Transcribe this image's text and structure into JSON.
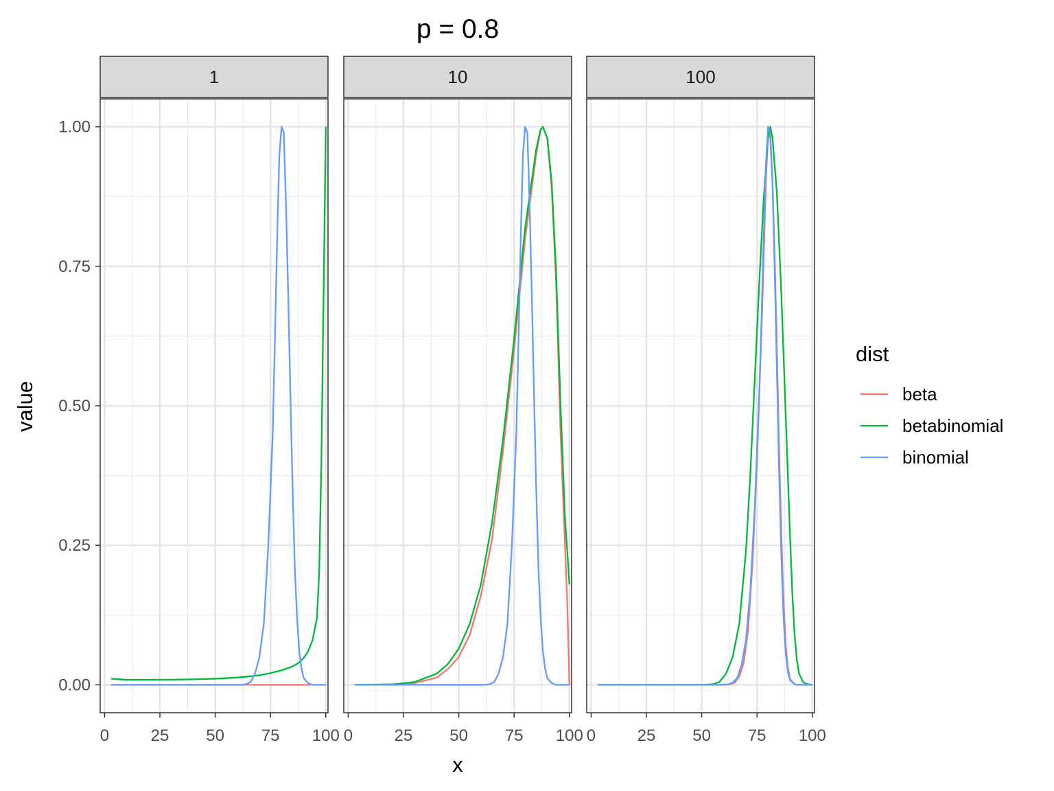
{
  "chart_data": {
    "type": "line",
    "title": "p = 0.8",
    "xlabel": "x",
    "ylabel": "value",
    "xlim": [
      -2,
      101
    ],
    "ylim": [
      -0.05,
      1.05
    ],
    "x_ticks": [
      0,
      25,
      50,
      75,
      100
    ],
    "x_tick_labels": [
      "0",
      "25",
      "50",
      "75",
      "100"
    ],
    "y_ticks": [
      0,
      0.25,
      0.5,
      0.75,
      1.0
    ],
    "y_tick_labels": [
      "0.00",
      "0.25",
      "0.50",
      "0.75",
      "1.00"
    ],
    "grid": true,
    "legend": {
      "title": "dist",
      "placement": "right",
      "entries": [
        {
          "label": "beta",
          "color": "#F8766D"
        },
        {
          "label": "betabinomial",
          "color": "#00BA38"
        },
        {
          "label": "binomial",
          "color": "#619CFF"
        }
      ]
    },
    "panels": [
      {
        "label": "1",
        "series": [
          {
            "name": "beta",
            "color": "#F8766D",
            "points": [
              [
                3,
                0
              ],
              [
                20,
                0
              ],
              [
                40,
                0
              ],
              [
                60,
                0
              ],
              [
                65,
                0
              ],
              [
                70,
                0
              ],
              [
                80,
                0
              ],
              [
                90,
                0
              ],
              [
                93,
                0
              ]
            ]
          },
          {
            "name": "betabinomial",
            "color": "#00BA38",
            "points": [
              [
                3,
                0.011
              ],
              [
                10,
                0.009
              ],
              [
                20,
                0.009
              ],
              [
                30,
                0.0092
              ],
              [
                40,
                0.0098
              ],
              [
                50,
                0.011
              ],
              [
                60,
                0.013
              ],
              [
                70,
                0.017
              ],
              [
                75,
                0.021
              ],
              [
                80,
                0.026
              ],
              [
                85,
                0.033
              ],
              [
                88,
                0.04
              ],
              [
                90,
                0.048
              ],
              [
                92,
                0.06
              ],
              [
                94,
                0.08
              ],
              [
                95,
                0.1
              ],
              [
                96,
                0.12
              ],
              [
                97,
                0.2
              ],
              [
                98,
                0.4
              ],
              [
                99,
                0.7
              ],
              [
                100,
                1.0
              ]
            ]
          },
          {
            "name": "binomial",
            "color": "#619CFF",
            "points": [
              [
                3,
                0
              ],
              [
                20,
                0
              ],
              [
                40,
                0
              ],
              [
                55,
                0
              ],
              [
                62,
                0
              ],
              [
                64,
                0.001
              ],
              [
                66,
                0.005
              ],
              [
                68,
                0.02
              ],
              [
                70,
                0.05
              ],
              [
                72,
                0.11
              ],
              [
                74,
                0.25
              ],
              [
                76,
                0.45
              ],
              [
                77,
                0.62
              ],
              [
                78,
                0.8
              ],
              [
                79,
                0.95
              ],
              [
                80,
                1.0
              ],
              [
                81,
                0.99
              ],
              [
                82,
                0.86
              ],
              [
                83,
                0.7
              ],
              [
                84,
                0.52
              ],
              [
                85,
                0.35
              ],
              [
                86,
                0.21
              ],
              [
                87,
                0.12
              ],
              [
                88,
                0.06
              ],
              [
                89,
                0.03
              ],
              [
                90,
                0.012
              ],
              [
                92,
                0.003
              ],
              [
                94,
                0.0
              ],
              [
                100,
                0.0
              ]
            ]
          }
        ]
      },
      {
        "label": "10",
        "series": [
          {
            "name": "beta",
            "color": "#F8766D",
            "points": [
              [
                3,
                0
              ],
              [
                20,
                0.0005
              ],
              [
                30,
                0.003
              ],
              [
                40,
                0.013
              ],
              [
                45,
                0.028
              ],
              [
                50,
                0.05
              ],
              [
                55,
                0.09
              ],
              [
                60,
                0.16
              ],
              [
                65,
                0.26
              ],
              [
                70,
                0.42
              ],
              [
                75,
                0.6
              ],
              [
                80,
                0.8
              ],
              [
                85,
                0.95
              ],
              [
                87,
                0.995
              ],
              [
                88,
                1.0
              ],
              [
                90,
                0.98
              ],
              [
                92,
                0.89
              ],
              [
                94,
                0.72
              ],
              [
                96,
                0.45
              ],
              [
                98,
                0.25
              ],
              [
                99,
                0.15
              ],
              [
                100,
                0.0
              ]
            ]
          },
          {
            "name": "betabinomial",
            "color": "#00BA38",
            "points": [
              [
                3,
                0
              ],
              [
                20,
                0.0008
              ],
              [
                30,
                0.005
              ],
              [
                40,
                0.02
              ],
              [
                45,
                0.037
              ],
              [
                50,
                0.065
              ],
              [
                55,
                0.11
              ],
              [
                60,
                0.18
              ],
              [
                65,
                0.29
              ],
              [
                70,
                0.44
              ],
              [
                75,
                0.62
              ],
              [
                80,
                0.82
              ],
              [
                85,
                0.96
              ],
              [
                87,
                0.995
              ],
              [
                88,
                1.0
              ],
              [
                90,
                0.98
              ],
              [
                92,
                0.9
              ],
              [
                94,
                0.74
              ],
              [
                96,
                0.5
              ],
              [
                98,
                0.3
              ],
              [
                100,
                0.18
              ]
            ]
          },
          {
            "name": "binomial",
            "color": "#619CFF",
            "points": [
              [
                3,
                0
              ],
              [
                20,
                0
              ],
              [
                40,
                0
              ],
              [
                55,
                0
              ],
              [
                62,
                0
              ],
              [
                64,
                0.001
              ],
              [
                66,
                0.005
              ],
              [
                68,
                0.02
              ],
              [
                70,
                0.05
              ],
              [
                72,
                0.11
              ],
              [
                74,
                0.25
              ],
              [
                76,
                0.45
              ],
              [
                77,
                0.62
              ],
              [
                78,
                0.8
              ],
              [
                79,
                0.95
              ],
              [
                80,
                1.0
              ],
              [
                81,
                0.99
              ],
              [
                82,
                0.86
              ],
              [
                83,
                0.7
              ],
              [
                84,
                0.52
              ],
              [
                85,
                0.35
              ],
              [
                86,
                0.21
              ],
              [
                87,
                0.12
              ],
              [
                88,
                0.06
              ],
              [
                89,
                0.03
              ],
              [
                90,
                0.012
              ],
              [
                92,
                0.003
              ],
              [
                94,
                0.0
              ],
              [
                100,
                0.0
              ]
            ]
          }
        ]
      },
      {
        "label": "100",
        "series": [
          {
            "name": "beta",
            "color": "#F8766D",
            "points": [
              [
                3,
                0
              ],
              [
                30,
                0
              ],
              [
                50,
                0
              ],
              [
                60,
                0
              ],
              [
                63,
                0.001
              ],
              [
                65,
                0.004
              ],
              [
                67,
                0.015
              ],
              [
                69,
                0.04
              ],
              [
                71,
                0.1
              ],
              [
                73,
                0.22
              ],
              [
                75,
                0.4
              ],
              [
                77,
                0.63
              ],
              [
                78,
                0.76
              ],
              [
                79,
                0.9
              ],
              [
                80,
                0.99
              ],
              [
                81,
                0.98
              ],
              [
                82,
                0.9
              ],
              [
                83,
                0.77
              ],
              [
                84,
                0.6
              ],
              [
                85,
                0.42
              ],
              [
                86,
                0.27
              ],
              [
                87,
                0.15
              ],
              [
                88,
                0.07
              ],
              [
                89,
                0.03
              ],
              [
                90,
                0.01
              ],
              [
                92,
                0.001
              ],
              [
                94,
                0
              ],
              [
                100,
                0
              ]
            ]
          },
          {
            "name": "betabinomial",
            "color": "#00BA38",
            "points": [
              [
                3,
                0
              ],
              [
                30,
                0
              ],
              [
                50,
                0
              ],
              [
                55,
                0.001
              ],
              [
                58,
                0.005
              ],
              [
                61,
                0.02
              ],
              [
                64,
                0.05
              ],
              [
                67,
                0.11
              ],
              [
                70,
                0.24
              ],
              [
                72,
                0.38
              ],
              [
                74,
                0.55
              ],
              [
                76,
                0.72
              ],
              [
                78,
                0.87
              ],
              [
                80,
                0.98
              ],
              [
                81,
                1.0
              ],
              [
                82,
                0.98
              ],
              [
                84,
                0.88
              ],
              [
                86,
                0.7
              ],
              [
                88,
                0.48
              ],
              [
                90,
                0.26
              ],
              [
                91,
                0.16
              ],
              [
                92,
                0.09
              ],
              [
                93,
                0.045
              ],
              [
                94,
                0.02
              ],
              [
                96,
                0.004
              ],
              [
                98,
                0.001
              ],
              [
                100,
                0
              ]
            ]
          },
          {
            "name": "binomial",
            "color": "#619CFF",
            "points": [
              [
                3,
                0
              ],
              [
                30,
                0
              ],
              [
                50,
                0
              ],
              [
                58,
                0
              ],
              [
                62,
                0.001
              ],
              [
                64,
                0.004
              ],
              [
                66,
                0.012
              ],
              [
                68,
                0.035
              ],
              [
                70,
                0.08
              ],
              [
                72,
                0.17
              ],
              [
                74,
                0.32
              ],
              [
                76,
                0.52
              ],
              [
                77,
                0.65
              ],
              [
                78,
                0.8
              ],
              [
                79,
                0.93
              ],
              [
                80,
                1.0
              ],
              [
                81,
                0.99
              ],
              [
                82,
                0.9
              ],
              [
                83,
                0.74
              ],
              [
                84,
                0.56
              ],
              [
                85,
                0.38
              ],
              [
                86,
                0.23
              ],
              [
                87,
                0.12
              ],
              [
                88,
                0.055
              ],
              [
                89,
                0.022
              ],
              [
                90,
                0.008
              ],
              [
                92,
                0.001
              ],
              [
                94,
                0
              ],
              [
                100,
                0
              ]
            ]
          }
        ]
      }
    ]
  }
}
